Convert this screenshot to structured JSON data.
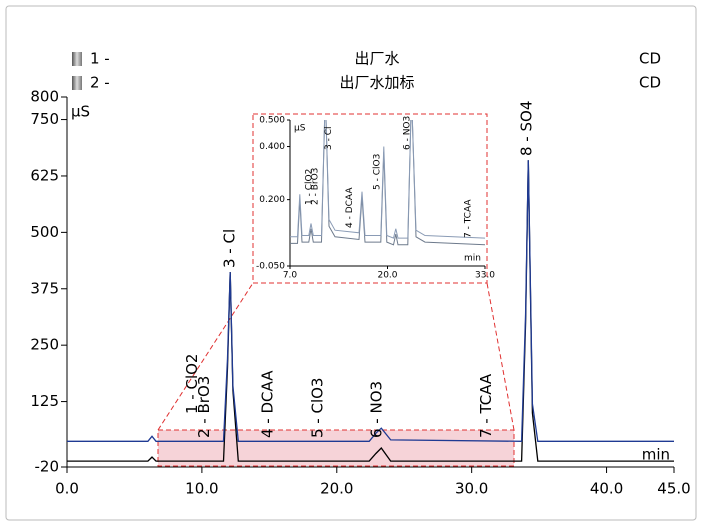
{
  "chart_data": [
    {
      "type": "line",
      "y_label": "µS",
      "x_label": "min",
      "x": [
        0,
        6.0,
        6.3,
        6.6,
        7.0,
        11.6,
        11.9,
        12.1,
        12.3,
        12.7,
        22.4,
        22.9,
        23.3,
        24.0,
        33.7,
        34.0,
        34.2,
        34.5,
        34.9,
        45
      ],
      "series": [
        {
          "index_label": "1 -",
          "name": "出厂水",
          "detector": "CD",
          "color": "#000000",
          "values": [
            -7,
            -7,
            2,
            -7,
            -7,
            -7,
            200,
            412,
            150,
            -7,
            -7,
            10,
            22,
            -7,
            -7,
            300,
            660,
            100,
            -7,
            -7
          ]
        },
        {
          "index_label": "2 -",
          "name": "出厂水加标",
          "detector": "CD",
          "color": "#1f3a93",
          "values": [
            37,
            37,
            48,
            37,
            37,
            37,
            220,
            412,
            160,
            37,
            37,
            55,
            66,
            40,
            37,
            320,
            660,
            120,
            37,
            37
          ]
        }
      ],
      "peaks": [
        {
          "label": "1 - ClO2",
          "x": 9.3
        },
        {
          "label": "2 - BrO3",
          "x": 10.2
        },
        {
          "label": "3 - Cl",
          "x": 12.1
        },
        {
          "label": "4 - DCAA",
          "x": 14.9
        },
        {
          "label": "5 - ClO3",
          "x": 18.6
        },
        {
          "label": "6 - NO3",
          "x": 23.0
        },
        {
          "label": "7 - TCAA",
          "x": 31.1
        },
        {
          "label": "8 - SO4",
          "x": 34.1
        }
      ],
      "xlim": [
        0,
        45
      ],
      "xticks": [
        {
          "value": 0,
          "label": "0.0"
        },
        {
          "value": 10,
          "label": "10.0"
        },
        {
          "value": 20,
          "label": "20.0"
        },
        {
          "value": 30,
          "label": "30.0"
        },
        {
          "value": 40,
          "label": "40.0"
        },
        {
          "value": 45,
          "label": "45.0"
        }
      ],
      "ylim": [
        -20,
        800
      ],
      "yticks": [
        -20,
        125,
        250,
        375,
        500,
        625,
        750,
        800
      ]
    },
    {
      "type": "line",
      "y_label": "µS",
      "x_label": "min",
      "x": [
        7,
        8.0,
        8.3,
        8.6,
        9.5,
        9.8,
        10.1,
        11.2,
        11.7,
        12.2,
        13,
        16.2,
        16.6,
        17.0,
        19.1,
        19.5,
        19.9,
        20.8,
        21.1,
        21.4,
        22.7,
        23.2,
        23.8,
        25,
        33
      ],
      "series": [
        {
          "color": "#6d7a8c",
          "values": [
            0.035,
            0.035,
            0.2,
            0.04,
            0.04,
            0.09,
            0.04,
            0.04,
            0.6,
            0.1,
            0.06,
            0.05,
            0.21,
            0.04,
            0.04,
            0.38,
            0.04,
            0.03,
            0.07,
            0.03,
            0.03,
            0.6,
            0.06,
            0.04,
            0.03
          ]
        },
        {
          "color": "#8a9bb5",
          "values": [
            0.06,
            0.06,
            0.22,
            0.065,
            0.065,
            0.11,
            0.065,
            0.065,
            0.6,
            0.125,
            0.085,
            0.075,
            0.23,
            0.065,
            0.065,
            0.4,
            0.065,
            0.055,
            0.09,
            0.055,
            0.055,
            0.6,
            0.085,
            0.065,
            0.055
          ]
        }
      ],
      "peaks": [
        {
          "label": "1 - ClO2",
          "x": 9.5
        },
        {
          "label": "2 - BrO3",
          "x": 10.3
        },
        {
          "label": "3 - Cl",
          "x": 12.1
        },
        {
          "label": "4 - DCAA",
          "x": 14.9
        },
        {
          "label": "5 - ClO3",
          "x": 18.6
        },
        {
          "label": "6 - NO3",
          "x": 22.6
        },
        {
          "label": "7 - TCAA",
          "x": 30.7
        }
      ],
      "xlim": [
        7,
        33
      ],
      "xticks": [
        {
          "value": 7,
          "label": "7.0"
        },
        {
          "value": 20,
          "label": "20.0"
        },
        {
          "value": 33,
          "label": "33.0"
        }
      ],
      "ylim": [
        -0.05,
        0.5
      ],
      "yticks": [
        {
          "value": -0.05,
          "label": "-0.050"
        },
        {
          "value": 0.2,
          "label": "0.200"
        },
        {
          "value": 0.4,
          "label": "0.400"
        },
        {
          "value": 0.5,
          "label": "0.500"
        }
      ]
    }
  ]
}
